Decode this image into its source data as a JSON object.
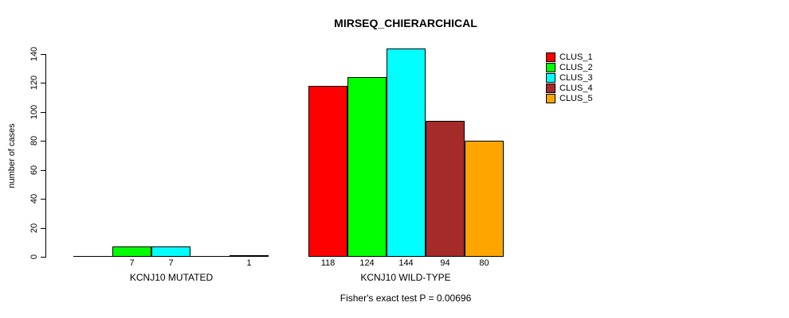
{
  "chart_data": {
    "type": "bar",
    "title": "MIRSEQ_CHIERARCHICAL",
    "ylabel": "number of cases",
    "xlabel": "",
    "ylim": [
      0,
      140
    ],
    "y_ticks": [
      0,
      20,
      40,
      60,
      80,
      100,
      120,
      140
    ],
    "grid": false,
    "legend_position": "right",
    "categories": [
      "KCNJ10 MUTATED",
      "KCNJ10 WILD-TYPE"
    ],
    "series": [
      {
        "name": "CLUS_1",
        "color": "#FF0000",
        "values": [
          0,
          118
        ]
      },
      {
        "name": "CLUS_2",
        "color": "#00FF00",
        "values": [
          7,
          124
        ]
      },
      {
        "name": "CLUS_3",
        "color": "#00FFFF",
        "values": [
          7,
          144
        ]
      },
      {
        "name": "CLUS_4",
        "color": "#A52A2A",
        "values": [
          0,
          94
        ]
      },
      {
        "name": "CLUS_5",
        "color": "#FFA500",
        "values": [
          1,
          80
        ]
      }
    ],
    "bar_value_labels_visible": [
      [
        "",
        "7",
        "7",
        "",
        "1"
      ],
      [
        "118",
        "124",
        "144",
        "94",
        "80"
      ]
    ],
    "annotation": "Fisher's exact test P = 0.00696"
  },
  "colors": {
    "axis": "#000000",
    "text": "#000000",
    "background": "#FFFFFF"
  }
}
